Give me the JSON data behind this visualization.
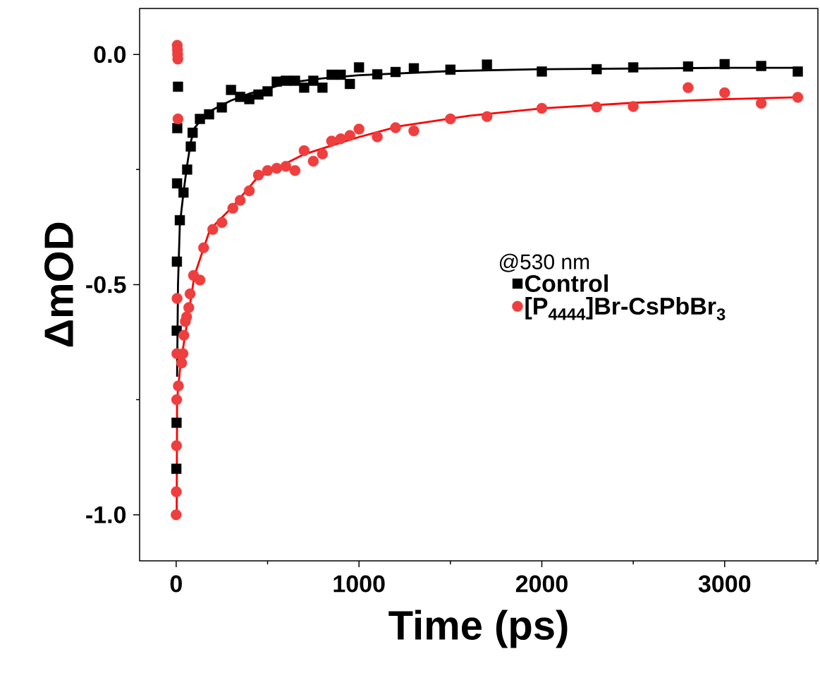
{
  "chart_data": {
    "type": "scatter",
    "xlabel": "Time (ps)",
    "ylabel": "ΔmOD",
    "legend_title": "@530 nm",
    "legend": "right",
    "xlim": [
      -200,
      3510
    ],
    "ylim": [
      -1.1,
      0.1
    ],
    "xticks": [
      0,
      {
        "value": 500,
        "label": null
      },
      1000,
      {
        "value": 1500,
        "label": null
      },
      2000,
      {
        "value": 2500,
        "label": null
      },
      3000,
      {
        "value": 3500,
        "label": null
      }
    ],
    "yticks": [
      {
        "value": -1.0,
        "label": "-1.0"
      },
      {
        "value": -0.75,
        "label": null
      },
      {
        "value": -0.5,
        "label": "-0.5"
      },
      {
        "value": -0.25,
        "label": null
      },
      {
        "value": 0.0,
        "label": "0.0"
      }
    ],
    "series": [
      {
        "name": "Control",
        "color": "#000000",
        "marker": "square",
        "x": [
          1,
          2,
          3,
          4,
          5,
          6,
          10,
          20,
          40,
          60,
          80,
          90,
          130,
          180,
          250,
          300,
          350,
          400,
          450,
          500,
          550,
          600,
          650,
          700,
          750,
          800,
          850,
          900,
          950,
          1000,
          1100,
          1200,
          1300,
          1500,
          1700,
          2000,
          2300,
          2500,
          2800,
          3000,
          3200,
          3400
        ],
        "values": [
          -0.9,
          -0.8,
          -0.6,
          -0.45,
          -0.28,
          -0.16,
          -0.07,
          -0.36,
          -0.3,
          -0.25,
          -0.2,
          -0.17,
          -0.14,
          -0.13,
          -0.115,
          -0.077,
          -0.092,
          -0.097,
          -0.087,
          -0.08,
          -0.059,
          -0.057,
          -0.057,
          -0.072,
          -0.057,
          -0.072,
          -0.044,
          -0.044,
          -0.064,
          -0.028,
          -0.043,
          -0.038,
          -0.03,
          -0.033,
          -0.022,
          -0.037,
          -0.032,
          -0.028,
          -0.026,
          -0.021,
          -0.025,
          -0.037
        ]
      },
      {
        "name": "[P$_{4444}$]Br-CsPbBr$_{3}$",
        "color": "#ee3e3e",
        "marker": "circle",
        "x": [
          0,
          1,
          2,
          3,
          4,
          5,
          6,
          7,
          8,
          9,
          10,
          12,
          30,
          37,
          42,
          50,
          57,
          69,
          76,
          95,
          130,
          150,
          200,
          250,
          310,
          350,
          400,
          450,
          500,
          550,
          600,
          650,
          700,
          750,
          800,
          850,
          900,
          950,
          1000,
          1100,
          1200,
          1300,
          1500,
          1700,
          2000,
          2300,
          2500,
          2800,
          3000,
          3200,
          3400
        ],
        "values": [
          -1.0,
          -0.95,
          -0.85,
          -0.75,
          -0.65,
          -0.53,
          0.02,
          0.01,
          0.0,
          -0.01,
          -0.14,
          -0.72,
          -0.67,
          -0.65,
          -0.61,
          -0.58,
          -0.57,
          -0.55,
          -0.52,
          -0.48,
          -0.49,
          -0.42,
          -0.38,
          -0.365,
          -0.334,
          -0.317,
          -0.296,
          -0.262,
          -0.252,
          -0.247,
          -0.243,
          -0.252,
          -0.209,
          -0.232,
          -0.216,
          -0.188,
          -0.183,
          -0.176,
          -0.162,
          -0.179,
          -0.159,
          -0.166,
          -0.14,
          -0.135,
          -0.117,
          -0.114,
          -0.113,
          -0.072,
          -0.083,
          -0.106,
          -0.093
        ]
      },
      {
        "type": "line",
        "color": "#000000",
        "marker": "none",
        "x": [
          5,
          10,
          20,
          40,
          60,
          80,
          100,
          150,
          200,
          300,
          400,
          500,
          600,
          800,
          1000,
          1500,
          2000,
          3000,
          3400
        ],
        "values": [
          -0.7,
          -0.5,
          -0.37,
          -0.3,
          -0.24,
          -0.19,
          -0.16,
          -0.135,
          -0.12,
          -0.1,
          -0.085,
          -0.075,
          -0.062,
          -0.052,
          -0.045,
          -0.036,
          -0.032,
          -0.029,
          -0.029
        ]
      },
      {
        "type": "line",
        "color": "#ff0000",
        "marker": "none",
        "x": [
          0,
          3,
          5,
          23,
          57,
          100,
          185,
          313,
          443,
          699,
          958,
          1216,
          1601,
          2000,
          2500,
          3000,
          3400
        ],
        "values": [
          -1.0,
          -0.99,
          -0.75,
          -0.675,
          -0.59,
          -0.48,
          -0.38,
          -0.329,
          -0.268,
          -0.217,
          -0.184,
          -0.156,
          -0.133,
          -0.117,
          -0.105,
          -0.097,
          -0.093
        ]
      }
    ]
  }
}
